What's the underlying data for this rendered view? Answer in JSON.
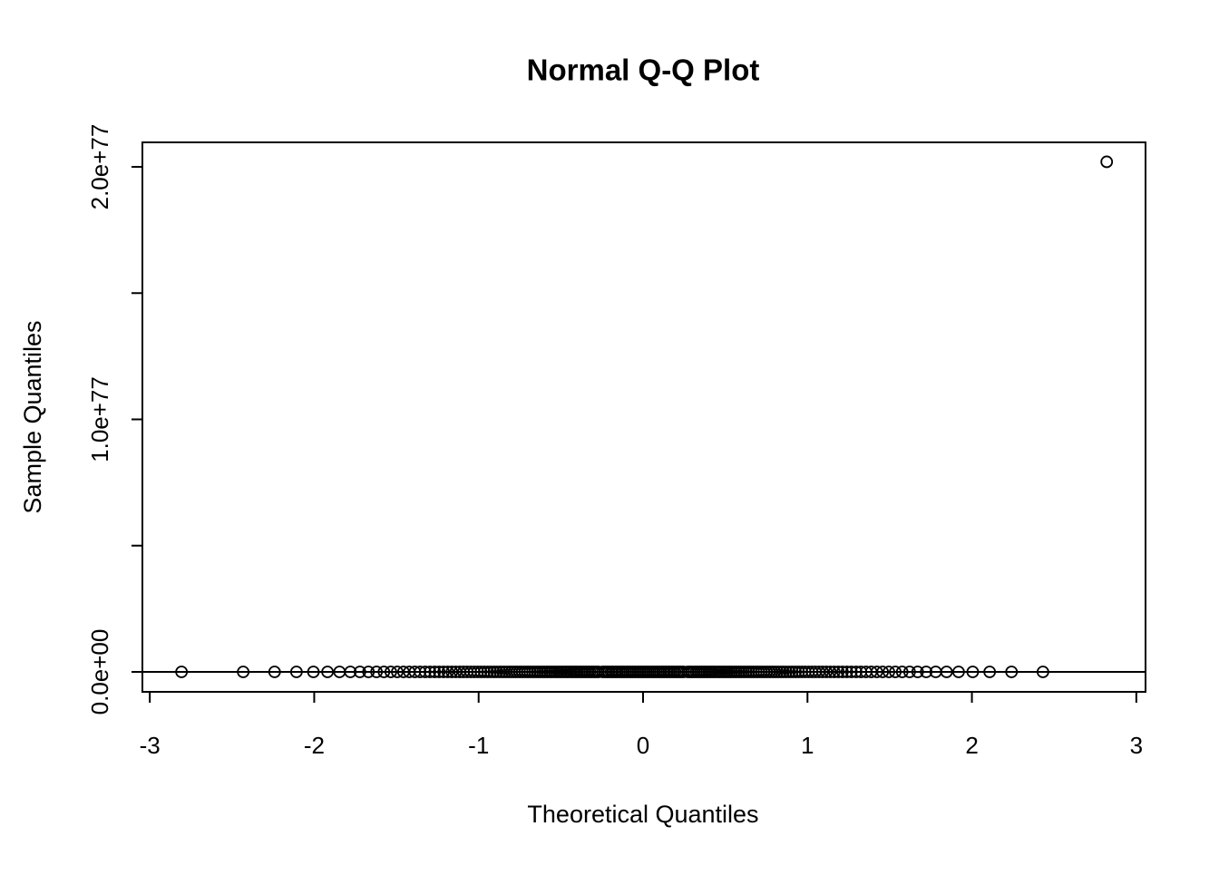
{
  "chart_data": {
    "type": "scatter",
    "title": "Normal Q-Q Plot",
    "x_label": "Theoretical Quantiles",
    "y_label": "Sample Quantiles",
    "xlim": [
      -3.045,
      3.056
    ],
    "ylim": [
      -7.9e+75,
      2.097e+77
    ],
    "xticks": [
      -3,
      -2,
      -1,
      0,
      1,
      2,
      3
    ],
    "yticks": [
      {
        "value": 0,
        "label": "0.0e+00"
      },
      {
        "value": 1e+77,
        "label": "1.0e+77"
      },
      {
        "value": 2e+77,
        "label": "2.0e+77"
      }
    ],
    "yticks_unlabeled": [
      5e+76,
      1.5e+77
    ],
    "reference_line_y": 0,
    "color": "#000000",
    "x": [
      -2.807,
      -2.432,
      -2.241,
      -2.108,
      -2.005,
      -1.919,
      -1.846,
      -1.78,
      -1.722,
      -1.67,
      -1.621,
      -1.576,
      -1.534,
      -1.495,
      -1.457,
      -1.422,
      -1.388,
      -1.356,
      -1.325,
      -1.296,
      -1.267,
      -1.24,
      -1.213,
      -1.188,
      -1.163,
      -1.139,
      -1.115,
      -1.092,
      -1.07,
      -1.048,
      -1.027,
      -1.006,
      -0.986,
      -0.966,
      -0.946,
      -0.927,
      -0.908,
      -0.89,
      -0.871,
      -0.853,
      -0.836,
      -0.818,
      -0.801,
      -0.784,
      -0.768,
      -0.751,
      -0.735,
      -0.719,
      -0.703,
      -0.688,
      -0.672,
      -0.657,
      -0.642,
      -0.627,
      -0.612,
      -0.597,
      -0.583,
      -0.568,
      -0.554,
      -0.539,
      -0.525,
      -0.511,
      -0.497,
      -0.483,
      -0.469,
      -0.456,
      -0.442,
      -0.428,
      -0.415,
      -0.402,
      -0.388,
      -0.375,
      -0.362,
      -0.349,
      -0.336,
      -0.323,
      -0.31,
      -0.297,
      -0.284,
      -0.271,
      -0.246,
      -0.233,
      -0.22,
      -0.208,
      -0.195,
      -0.183,
      -0.17,
      -0.158,
      -0.145,
      -0.132,
      -0.12,
      -0.107,
      -0.094,
      -0.082,
      -0.069,
      -0.057,
      -0.044,
      -0.031,
      -0.019,
      -0.006,
      0.006,
      0.019,
      0.031,
      0.044,
      0.057,
      0.069,
      0.082,
      0.094,
      0.107,
      0.12,
      0.132,
      0.145,
      0.158,
      0.17,
      0.183,
      0.195,
      0.208,
      0.22,
      0.233,
      0.246,
      0.271,
      0.284,
      0.297,
      0.31,
      0.323,
      0.336,
      0.349,
      0.362,
      0.375,
      0.388,
      0.402,
      0.415,
      0.428,
      0.442,
      0.456,
      0.469,
      0.483,
      0.497,
      0.511,
      0.525,
      0.539,
      0.554,
      0.568,
      0.583,
      0.597,
      0.612,
      0.627,
      0.642,
      0.657,
      0.672,
      0.688,
      0.703,
      0.719,
      0.735,
      0.751,
      0.768,
      0.784,
      0.801,
      0.818,
      0.836,
      0.853,
      0.871,
      0.89,
      0.908,
      0.927,
      0.946,
      0.966,
      0.986,
      1.006,
      1.027,
      1.048,
      1.07,
      1.092,
      1.115,
      1.139,
      1.163,
      1.188,
      1.213,
      1.24,
      1.267,
      1.296,
      1.325,
      1.356,
      1.388,
      1.422,
      1.457,
      1.495,
      1.534,
      1.576,
      1.621,
      1.67,
      1.722,
      1.78,
      1.846,
      1.919,
      2.005,
      2.108,
      2.241,
      2.432,
      2.82
    ],
    "y": [
      0,
      0,
      0,
      0,
      0,
      0,
      0,
      0,
      0,
      0,
      0,
      0,
      0,
      0,
      0,
      0,
      0,
      0,
      0,
      0,
      0,
      0,
      0,
      0,
      0,
      0,
      0,
      0,
      0,
      0,
      0,
      0,
      0,
      0,
      0,
      0,
      0,
      0,
      0,
      0,
      0,
      0,
      0,
      0,
      0,
      0,
      0,
      0,
      0,
      0,
      0,
      0,
      0,
      0,
      0,
      0,
      0,
      0,
      0,
      0,
      0,
      0,
      0,
      0,
      0,
      0,
      0,
      0,
      0,
      0,
      0,
      0,
      0,
      0,
      0,
      0,
      0,
      0,
      0,
      0,
      0,
      0,
      0,
      0,
      0,
      0,
      0,
      0,
      0,
      0,
      0,
      0,
      0,
      0,
      0,
      0,
      0,
      0,
      0,
      0,
      0,
      0,
      0,
      0,
      0,
      0,
      0,
      0,
      0,
      0,
      0,
      0,
      0,
      0,
      0,
      0,
      0,
      0,
      0,
      0,
      0,
      0,
      0,
      0,
      0,
      0,
      0,
      0,
      0,
      0,
      0,
      0,
      0,
      0,
      0,
      0,
      0,
      0,
      0,
      0,
      0,
      0,
      0,
      0,
      0,
      0,
      0,
      0,
      0,
      0,
      0,
      0,
      0,
      0,
      0,
      0,
      0,
      0,
      0,
      0,
      0,
      0,
      0,
      0,
      0,
      0,
      0,
      0,
      0,
      0,
      0,
      0,
      0,
      0,
      0,
      0,
      0,
      0,
      0,
      0,
      0,
      0,
      0,
      0,
      0,
      0,
      0,
      0,
      0,
      0,
      0,
      0,
      0,
      0,
      0,
      0,
      0,
      0,
      0,
      2.02e+77
    ]
  }
}
